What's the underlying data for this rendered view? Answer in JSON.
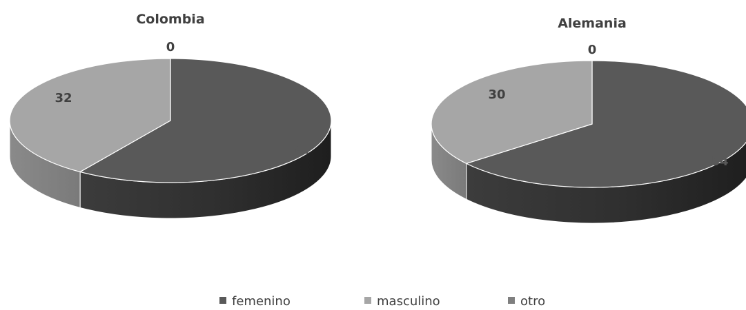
{
  "chart_data": [
    {
      "type": "pie",
      "title": "Colombia",
      "categories": [
        "femenino",
        "masculino",
        "otro"
      ],
      "values": [
        47,
        32,
        0
      ],
      "colors": [
        "#595959",
        "#a6a6a6",
        "#7f7f7f"
      ],
      "label_colors": [
        "#595959",
        "#404040",
        "#404040"
      ],
      "style": "3d"
    },
    {
      "type": "pie",
      "title": "Alemania",
      "categories": [
        "femenino",
        "masculino",
        "otro"
      ],
      "values": [
        54,
        30,
        0
      ],
      "colors": [
        "#595959",
        "#a6a6a6",
        "#7f7f7f"
      ],
      "label_colors": [
        "#595959",
        "#404040",
        "#404040"
      ],
      "style": "3d"
    }
  ],
  "legend": {
    "placement": "bottom",
    "items": [
      {
        "label": "femenino",
        "color": "#595959"
      },
      {
        "label": "masculino",
        "color": "#a6a6a6"
      },
      {
        "label": "otro",
        "color": "#7f7f7f"
      }
    ]
  }
}
